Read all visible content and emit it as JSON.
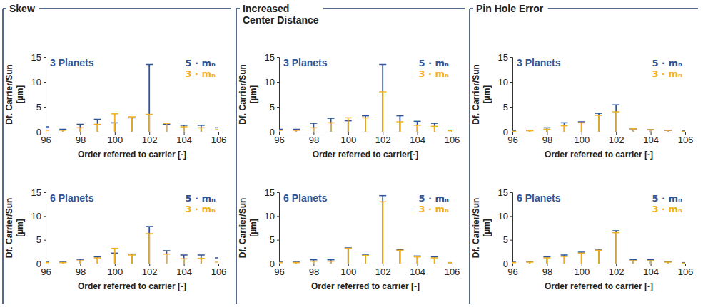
{
  "panels": [
    {
      "title": "Skew"
    },
    {
      "title": "Increased Center Distance"
    },
    {
      "title": "Pin Hole Error"
    }
  ],
  "chart_data": [
    {
      "type": "stem",
      "title": "3 Planets",
      "x": [
        96,
        97,
        98,
        99,
        100,
        101,
        102,
        103,
        104,
        105,
        106
      ],
      "series": [
        {
          "name": "5 · mₙ",
          "color": "#2f5597",
          "marker": "cap",
          "values": [
            1.0,
            0.5,
            1.5,
            2.5,
            1.8,
            2.8,
            13.5,
            1.5,
            1.3,
            1.3,
            0.8
          ]
        },
        {
          "name": "3 · mₙ",
          "color": "#f2b01e",
          "marker": "cap",
          "values": [
            0.3,
            0.3,
            0.8,
            1.5,
            3.6,
            3.0,
            3.5,
            1.7,
            1.0,
            0.8,
            0.4
          ]
        }
      ],
      "xlim": [
        96,
        106
      ],
      "ylim": [
        0,
        15
      ],
      "xticks": [
        96,
        98,
        100,
        102,
        104,
        106
      ],
      "yticks": [
        0,
        5,
        10,
        15
      ],
      "xlabel": "Order referred to carrier [-]",
      "ylabel": "Df. Carrier/Sun [µm]",
      "legend": "top-right",
      "grid": false
    },
    {
      "type": "stem",
      "title": "6 Planets",
      "x": [
        96,
        97,
        98,
        99,
        100,
        101,
        102,
        103,
        104,
        105,
        106
      ],
      "series": [
        {
          "name": "5 · mₙ",
          "color": "#2f5597",
          "marker": "cap",
          "values": [
            0.3,
            0.3,
            0.9,
            1.4,
            2.2,
            2.0,
            7.8,
            2.7,
            1.8,
            1.8,
            1.2
          ]
        },
        {
          "name": "3 · mₙ",
          "color": "#f2b01e",
          "marker": "cap",
          "values": [
            0.2,
            0.2,
            0.6,
            1.2,
            3.2,
            1.8,
            6.3,
            2.0,
            1.0,
            1.1,
            0.3
          ]
        }
      ],
      "xlim": [
        96,
        106
      ],
      "ylim": [
        0,
        15
      ],
      "xticks": [
        96,
        98,
        100,
        102,
        104,
        106
      ],
      "yticks": [
        0,
        5,
        10,
        15
      ],
      "xlabel": "Order referred to carrier [-]",
      "ylabel": "Df. Carrier/Sun [µm]",
      "legend": "top-right",
      "grid": false
    },
    {
      "type": "stem",
      "title": "3 Planets",
      "x": [
        96,
        97,
        98,
        99,
        100,
        101,
        102,
        103,
        104,
        105,
        106
      ],
      "series": [
        {
          "name": "5 · mₙ",
          "color": "#2f5597",
          "marker": "cap",
          "values": [
            0.5,
            0.5,
            1.7,
            2.7,
            2.2,
            3.2,
            13.5,
            3.2,
            2.1,
            1.7,
            0.3
          ]
        },
        {
          "name": "3 · mₙ",
          "color": "#f2b01e",
          "marker": "cap",
          "values": [
            0.3,
            0.3,
            0.8,
            1.8,
            2.8,
            2.8,
            8.0,
            2.0,
            1.3,
            1.1,
            0.2
          ]
        }
      ],
      "xlim": [
        96,
        106
      ],
      "ylim": [
        0,
        15
      ],
      "xticks": [
        96,
        98,
        100,
        102,
        104,
        106
      ],
      "yticks": [
        0,
        5,
        10,
        15
      ],
      "xlabel": "Order referred to carrier[-]",
      "ylabel": "Df. Carrier/Sun [µm]",
      "legend": "top-right",
      "grid": false
    },
    {
      "type": "stem",
      "title": "6 Planets",
      "x": [
        96,
        97,
        98,
        99,
        100,
        101,
        102,
        103,
        104,
        105,
        106
      ],
      "series": [
        {
          "name": "5 · mₙ",
          "color": "#2f5597",
          "marker": "cap",
          "values": [
            0.3,
            0.3,
            0.8,
            0.8,
            3.3,
            1.8,
            14.3,
            2.9,
            1.6,
            1.4,
            0.2
          ]
        },
        {
          "name": "3 · mₙ",
          "color": "#f2b01e",
          "marker": "cap",
          "values": [
            0.2,
            0.2,
            0.5,
            0.5,
            3.2,
            1.7,
            13.0,
            2.8,
            1.4,
            1.2,
            0.2
          ]
        }
      ],
      "xlim": [
        96,
        106
      ],
      "ylim": [
        0,
        15
      ],
      "xticks": [
        96,
        98,
        100,
        102,
        104,
        106
      ],
      "yticks": [
        0,
        5,
        10,
        15
      ],
      "xlabel": "Order referred to carrier [-]",
      "ylabel": "Df. Carrier/Sun [µm]",
      "legend": "top-right",
      "grid": false
    },
    {
      "type": "stem",
      "title": "3 Planets",
      "x": [
        96,
        97,
        98,
        99,
        100,
        101,
        102,
        103,
        104,
        105,
        106
      ],
      "series": [
        {
          "name": "5 · mₙ",
          "color": "#2f5597",
          "marker": "cap",
          "values": [
            0.2,
            0.3,
            0.8,
            1.8,
            2.0,
            3.7,
            5.4,
            0.6,
            0.4,
            0.3,
            0.2
          ]
        },
        {
          "name": "3 · mₙ",
          "color": "#f2b01e",
          "marker": "cap",
          "values": [
            0.1,
            0.2,
            0.5,
            1.2,
            1.8,
            3.3,
            4.0,
            0.6,
            0.4,
            0.3,
            0.1
          ]
        }
      ],
      "xlim": [
        96,
        106
      ],
      "ylim": [
        0,
        15
      ],
      "xticks": [
        96,
        98,
        100,
        102,
        104,
        106
      ],
      "yticks": [
        0,
        5,
        10,
        15
      ],
      "xlabel": "Order referred to carrier [-]",
      "ylabel": "Df. Carrier/Sun [µm]",
      "legend": "top-right",
      "grid": false
    },
    {
      "type": "stem",
      "title": "6 Planets",
      "x": [
        96,
        97,
        98,
        99,
        100,
        101,
        102,
        103,
        104,
        105,
        106
      ],
      "series": [
        {
          "name": "5 · mₙ",
          "color": "#2f5597",
          "marker": "cap",
          "values": [
            0.3,
            0.4,
            1.4,
            1.8,
            2.4,
            3.0,
            6.9,
            0.8,
            0.8,
            0.4,
            0.2
          ]
        },
        {
          "name": "3 · mₙ",
          "color": "#f2b01e",
          "marker": "cap",
          "values": [
            0.2,
            0.3,
            1.2,
            1.5,
            2.2,
            2.8,
            6.5,
            0.6,
            0.6,
            0.3,
            0.1
          ]
        }
      ],
      "xlim": [
        96,
        106
      ],
      "ylim": [
        0,
        15
      ],
      "xticks": [
        96,
        98,
        100,
        102,
        104,
        106
      ],
      "yticks": [
        0,
        5,
        10,
        15
      ],
      "xlabel": "Order referred to carrier [-]",
      "ylabel": "Df. Carrier/Sun [µm]",
      "legend": "top-right",
      "grid": false
    }
  ]
}
